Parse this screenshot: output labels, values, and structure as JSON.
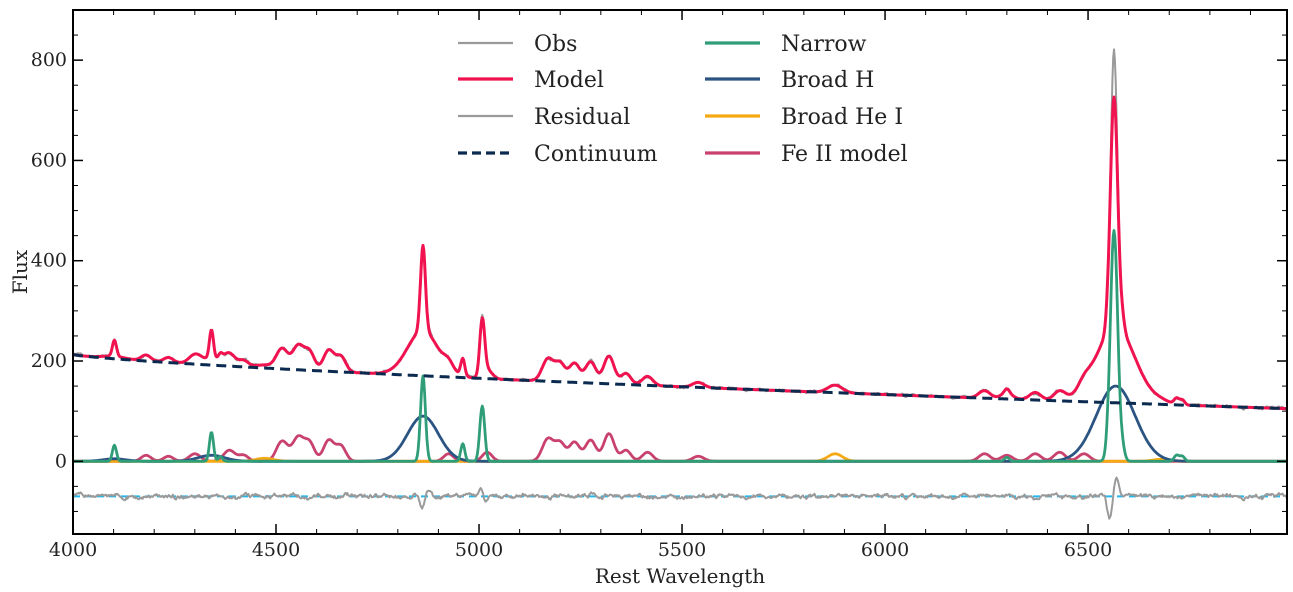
{
  "chart_data": {
    "type": "line",
    "xlabel": "Rest Wavelength",
    "ylabel": "Flux",
    "xlim": [
      4000,
      6990
    ],
    "ylim": [
      -145,
      900
    ],
    "x_ticks": [
      4000,
      4500,
      5000,
      5500,
      6000,
      6500
    ],
    "y_ticks": [
      0,
      200,
      400,
      600,
      800
    ],
    "grid": false,
    "legend_position": "top-center",
    "residual_offset": -70,
    "colors": {
      "obs": "#9a9a9a",
      "model": "#f0134f",
      "residual": "#9a9a9a",
      "continuum": "#0b2a4f",
      "narrow": "#2f9e78",
      "broad_h": "#2c5483",
      "broad_hei": "#f5a913",
      "feii": "#c9426e",
      "residual_zero": "#25b6ea"
    },
    "continuum": {
      "a": 213,
      "b": 105,
      "x0": 4000,
      "x1": 6990,
      "shape": 0.75
    },
    "narrow_lines": [
      {
        "center": 4102,
        "amp": 32,
        "width": 5
      },
      {
        "center": 4341,
        "amp": 58,
        "width": 5
      },
      {
        "center": 4363,
        "amp": 10,
        "width": 5
      },
      {
        "center": 4862,
        "amp": 170,
        "width": 6
      },
      {
        "center": 4960,
        "amp": 35,
        "width": 5
      },
      {
        "center": 5008,
        "amp": 110,
        "width": 6
      },
      {
        "center": 6550,
        "amp": 8,
        "width": 5
      },
      {
        "center": 6564,
        "amp": 460,
        "width": 9
      },
      {
        "center": 6585,
        "amp": 20,
        "width": 6
      },
      {
        "center": 6718,
        "amp": 12,
        "width": 6
      },
      {
        "center": 6732,
        "amp": 10,
        "width": 6
      },
      {
        "center": 6300,
        "amp": 8,
        "width": 6
      }
    ],
    "broad_h_lines": [
      {
        "center": 4102,
        "amp": 5,
        "width": 28
      },
      {
        "center": 4341,
        "amp": 12,
        "width": 32
      },
      {
        "center": 4862,
        "amp": 90,
        "width": 38
      },
      {
        "center": 6568,
        "amp": 150,
        "width": 48
      }
    ],
    "broad_hei_lines": [
      {
        "center": 4472,
        "amp": 6,
        "width": 22
      },
      {
        "center": 5877,
        "amp": 15,
        "width": 18
      },
      {
        "center": 6680,
        "amp": 4,
        "width": 20
      }
    ],
    "feii_bumps": [
      {
        "center": 4180,
        "amp": 12,
        "width": 12
      },
      {
        "center": 4235,
        "amp": 10,
        "width": 12
      },
      {
        "center": 4300,
        "amp": 15,
        "width": 14
      },
      {
        "center": 4385,
        "amp": 22,
        "width": 14
      },
      {
        "center": 4420,
        "amp": 12,
        "width": 12
      },
      {
        "center": 4515,
        "amp": 40,
        "width": 14
      },
      {
        "center": 4555,
        "amp": 48,
        "width": 14
      },
      {
        "center": 4583,
        "amp": 35,
        "width": 12
      },
      {
        "center": 4630,
        "amp": 42,
        "width": 13
      },
      {
        "center": 4660,
        "amp": 30,
        "width": 12
      },
      {
        "center": 4925,
        "amp": 15,
        "width": 12
      },
      {
        "center": 5020,
        "amp": 18,
        "width": 12
      },
      {
        "center": 5170,
        "amp": 45,
        "width": 14
      },
      {
        "center": 5200,
        "amp": 35,
        "width": 12
      },
      {
        "center": 5235,
        "amp": 38,
        "width": 13
      },
      {
        "center": 5275,
        "amp": 42,
        "width": 13
      },
      {
        "center": 5320,
        "amp": 55,
        "width": 13
      },
      {
        "center": 5362,
        "amp": 22,
        "width": 12
      },
      {
        "center": 5415,
        "amp": 18,
        "width": 13
      },
      {
        "center": 5540,
        "amp": 10,
        "width": 14
      },
      {
        "center": 6245,
        "amp": 15,
        "width": 14
      },
      {
        "center": 6300,
        "amp": 12,
        "width": 14
      },
      {
        "center": 6370,
        "amp": 15,
        "width": 14
      },
      {
        "center": 6430,
        "amp": 18,
        "width": 14
      },
      {
        "center": 6490,
        "amp": 15,
        "width": 14
      }
    ],
    "series": [
      {
        "name": "Obs",
        "key": "obs"
      },
      {
        "name": "Model",
        "key": "model"
      },
      {
        "name": "Residual",
        "key": "residual"
      },
      {
        "name": "Continuum",
        "key": "continuum"
      },
      {
        "name": "Narrow",
        "key": "narrow"
      },
      {
        "name": "Broad H",
        "key": "broad_h"
      },
      {
        "name": "Broad He I",
        "key": "broad_hei"
      },
      {
        "name": "Fe II model",
        "key": "feii"
      }
    ]
  }
}
